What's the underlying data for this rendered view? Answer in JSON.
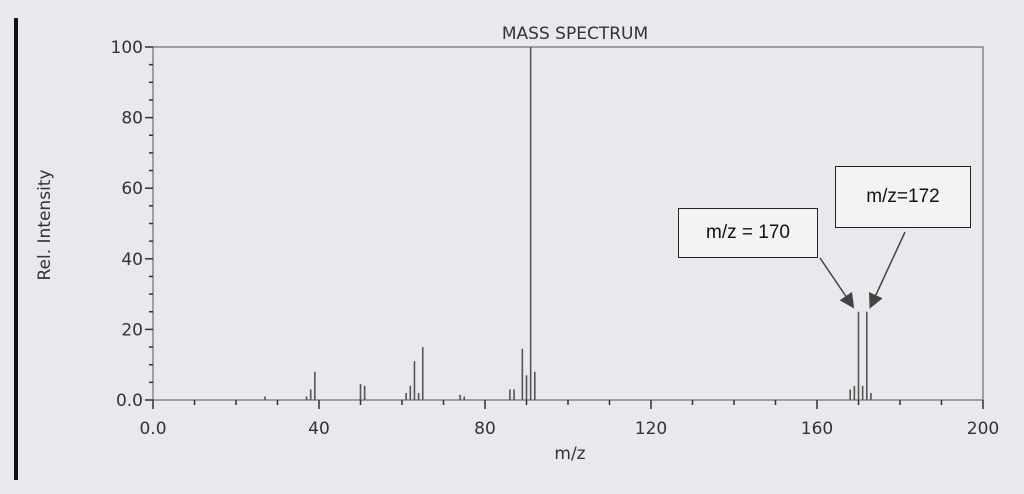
{
  "chart_data": {
    "type": "bar",
    "title": "MASS SPECTRUM",
    "xlabel": "m/z",
    "ylabel": "Rel. Intensity",
    "xlim": [
      0,
      200
    ],
    "ylim": [
      0,
      100
    ],
    "xticks": [
      "0.0",
      "40",
      "80",
      "120",
      "160",
      "200"
    ],
    "xtick_values": [
      0,
      40,
      80,
      120,
      160,
      200
    ],
    "yticks": [
      "0.0",
      "20",
      "40",
      "60",
      "80",
      "100"
    ],
    "ytick_values": [
      0,
      20,
      40,
      60,
      80,
      100
    ],
    "grid": false,
    "peaks": [
      {
        "mz": 27,
        "intensity": 1
      },
      {
        "mz": 37,
        "intensity": 1
      },
      {
        "mz": 38,
        "intensity": 3
      },
      {
        "mz": 39,
        "intensity": 8
      },
      {
        "mz": 50,
        "intensity": 4.5
      },
      {
        "mz": 51,
        "intensity": 4
      },
      {
        "mz": 61,
        "intensity": 2
      },
      {
        "mz": 62,
        "intensity": 4
      },
      {
        "mz": 63,
        "intensity": 11
      },
      {
        "mz": 64,
        "intensity": 2
      },
      {
        "mz": 65,
        "intensity": 15
      },
      {
        "mz": 74,
        "intensity": 1.5
      },
      {
        "mz": 75,
        "intensity": 1
      },
      {
        "mz": 86,
        "intensity": 3
      },
      {
        "mz": 87,
        "intensity": 3
      },
      {
        "mz": 89,
        "intensity": 14.5
      },
      {
        "mz": 90,
        "intensity": 7
      },
      {
        "mz": 91,
        "intensity": 100
      },
      {
        "mz": 92,
        "intensity": 8
      },
      {
        "mz": 168,
        "intensity": 3
      },
      {
        "mz": 169,
        "intensity": 4
      },
      {
        "mz": 170,
        "intensity": 25
      },
      {
        "mz": 171,
        "intensity": 4
      },
      {
        "mz": 172,
        "intensity": 25
      },
      {
        "mz": 173,
        "intensity": 2
      }
    ],
    "annotations": [
      {
        "text": "m/z = 170",
        "target_mz": 170
      },
      {
        "text": "m/z=172",
        "target_mz": 172
      }
    ],
    "peak_color": "#555555"
  }
}
